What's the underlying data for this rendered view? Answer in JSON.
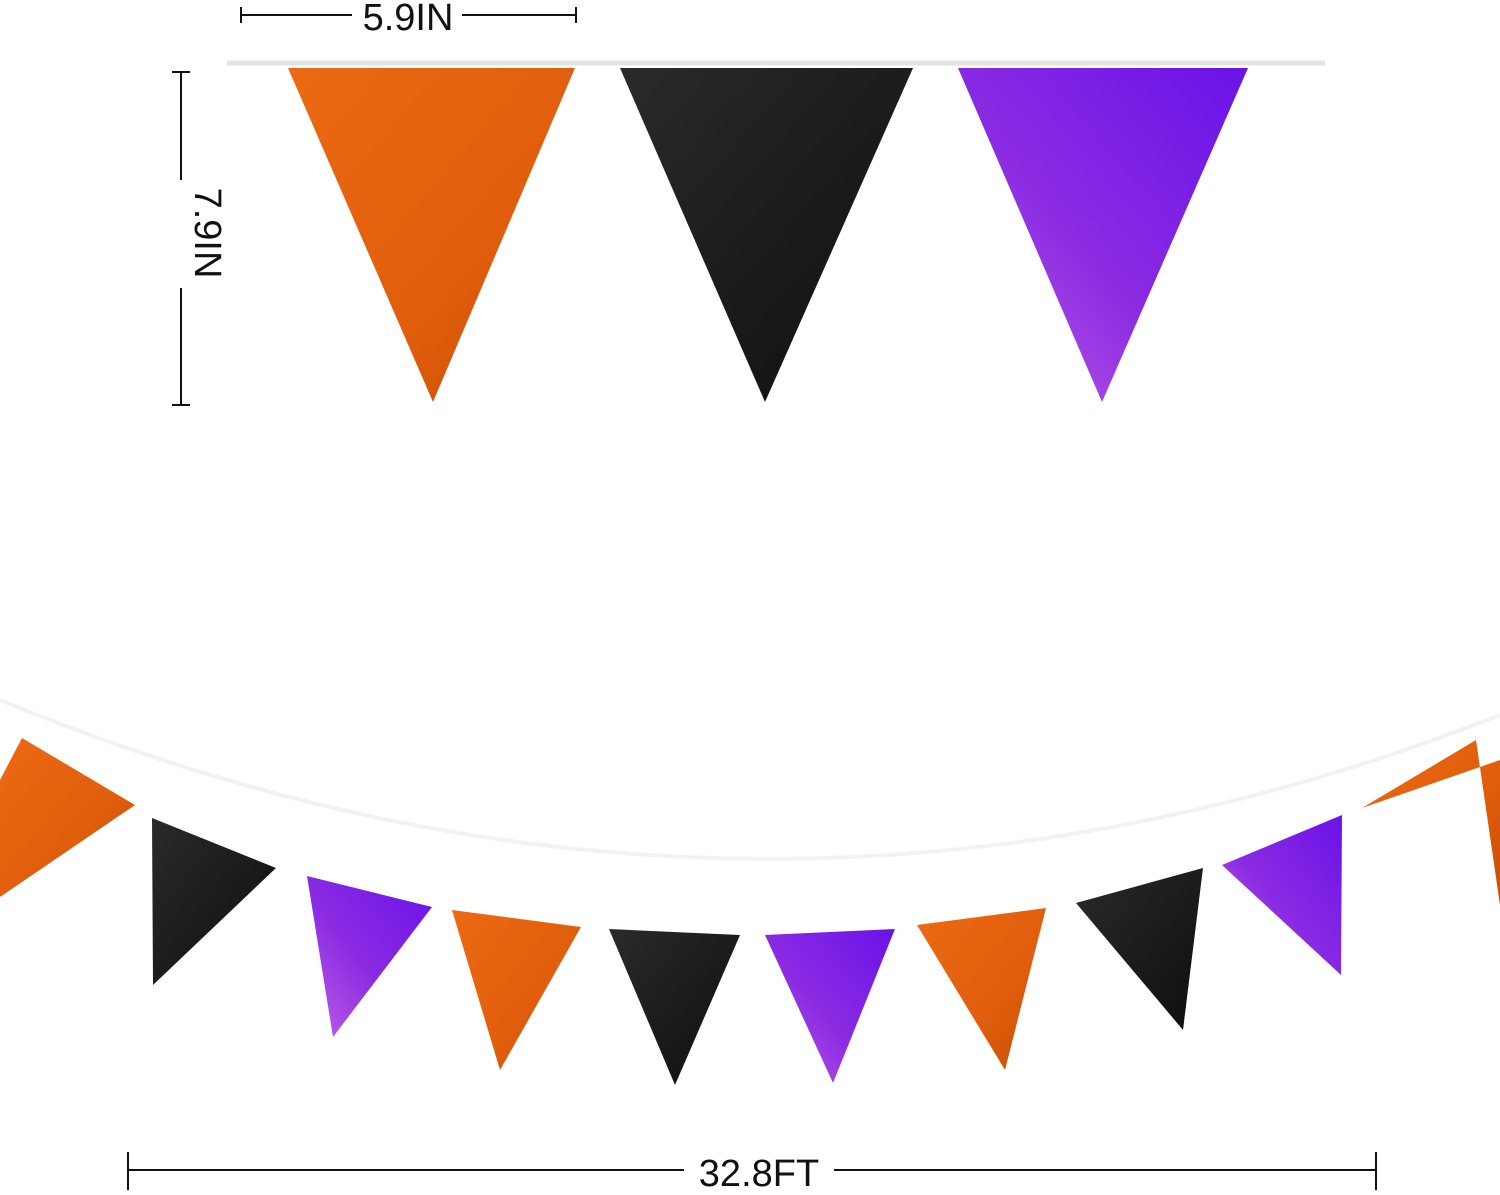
{
  "dimensions": {
    "flag_width": "5.9IN",
    "flag_height": "7.9IN",
    "total_length": "32.8FT"
  },
  "colors": {
    "orange": "#e2610f",
    "black": "#1c1c1c",
    "purple": "#7a1fe0",
    "string": "#e6e6e6"
  },
  "top_flags": [
    "orange",
    "black",
    "purple"
  ],
  "bottom_flags": [
    "orange",
    "black",
    "purple",
    "orange",
    "black",
    "purple",
    "orange",
    "black",
    "purple",
    "orange"
  ]
}
